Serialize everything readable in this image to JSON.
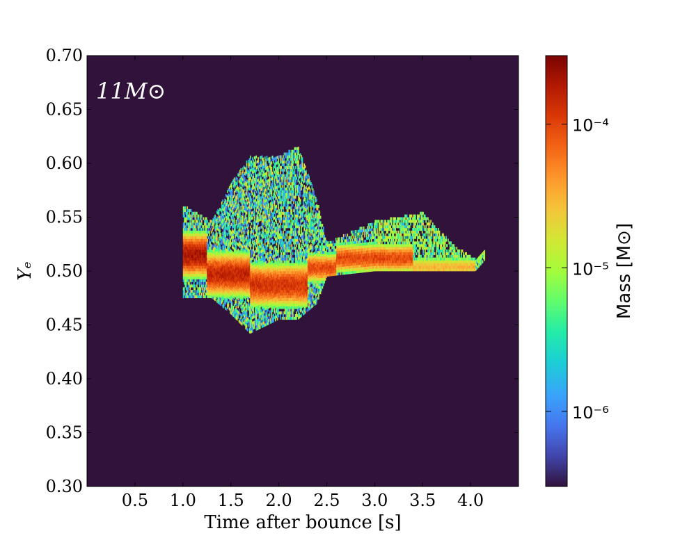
{
  "chart_data": {
    "type": "heatmap",
    "title": "",
    "annotation": "11M⊙",
    "xlabel": "Time after bounce [s]",
    "ylabel": "Yₑ",
    "colorbar_label": "Mass [M⊙]",
    "xlim": [
      0.0,
      4.5
    ],
    "ylim": [
      0.3,
      0.7
    ],
    "xticks": [
      "0.5",
      "1.0",
      "1.5",
      "2.0",
      "2.5",
      "3.0",
      "3.5",
      "4.0"
    ],
    "yticks": [
      "0.30",
      "0.35",
      "0.40",
      "0.45",
      "0.50",
      "0.55",
      "0.60",
      "0.65",
      "0.70"
    ],
    "color_scale": "log",
    "clim": [
      3e-07,
      0.0003
    ],
    "colorbar_ticks": [
      "10⁻⁶",
      "10⁻⁵",
      "10⁻⁴"
    ],
    "background_color": "#30123b",
    "bin_width_s": 0.05,
    "bin_height_ye": 0.005,
    "bands": [
      {
        "t0": 1.0,
        "t1": 1.25,
        "ye_center": 0.515,
        "ye_core": 0.012,
        "log_mass_peak": -3.6
      },
      {
        "t0": 1.25,
        "t1": 1.7,
        "ye_center": 0.497,
        "ye_core": 0.012,
        "log_mass_peak": -3.7
      },
      {
        "t0": 1.7,
        "t1": 2.3,
        "ye_center": 0.487,
        "ye_core": 0.012,
        "log_mass_peak": -3.8
      },
      {
        "t0": 2.3,
        "t1": 2.6,
        "ye_center": 0.503,
        "ye_core": 0.008,
        "log_mass_peak": -3.9
      },
      {
        "t0": 2.6,
        "t1": 3.4,
        "ye_center": 0.512,
        "ye_core": 0.008,
        "log_mass_peak": -3.9
      },
      {
        "t0": 3.4,
        "t1": 4.05,
        "ye_center": 0.504,
        "ye_core": 0.006,
        "log_mass_peak": -4.4
      }
    ],
    "envelope": [
      {
        "t": 1.0,
        "ye_min": 0.475,
        "ye_max": 0.56
      },
      {
        "t": 1.3,
        "ye_min": 0.475,
        "ye_max": 0.545
      },
      {
        "t": 1.5,
        "ye_min": 0.46,
        "ye_max": 0.58
      },
      {
        "t": 1.7,
        "ye_min": 0.442,
        "ye_max": 0.605
      },
      {
        "t": 2.0,
        "ye_min": 0.455,
        "ye_max": 0.605
      },
      {
        "t": 2.2,
        "ye_min": 0.455,
        "ye_max": 0.615
      },
      {
        "t": 2.4,
        "ye_min": 0.47,
        "ye_max": 0.565
      },
      {
        "t": 2.5,
        "ye_min": 0.495,
        "ye_max": 0.525
      },
      {
        "t": 3.0,
        "ye_min": 0.5,
        "ye_max": 0.545
      },
      {
        "t": 3.5,
        "ye_min": 0.5,
        "ye_max": 0.553
      },
      {
        "t": 3.8,
        "ye_min": 0.5,
        "ye_max": 0.525
      },
      {
        "t": 4.05,
        "ye_min": 0.5,
        "ye_max": 0.51
      },
      {
        "t": 4.15,
        "ye_min": 0.51,
        "ye_max": 0.518
      }
    ]
  }
}
